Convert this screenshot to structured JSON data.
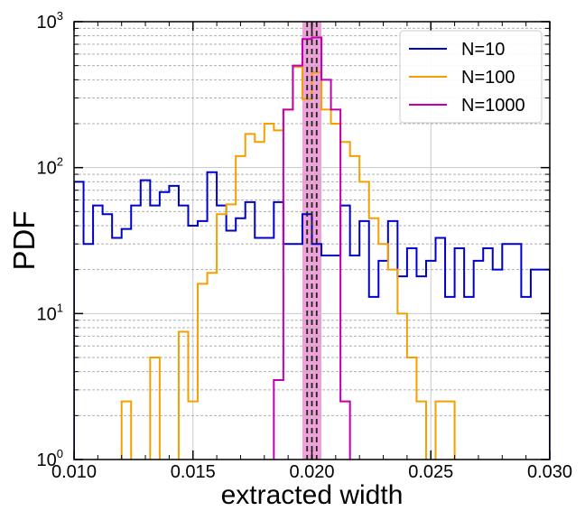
{
  "chart_data": {
    "type": "line",
    "title": "",
    "xlabel": "extracted width",
    "ylabel": "PDF",
    "xlim": [
      0.01,
      0.03
    ],
    "ylim": [
      1,
      1000
    ],
    "yscale": "log",
    "grid": true,
    "legend_position": "top-right",
    "x_ticks": [
      "0.010",
      "0.015",
      "0.020",
      "0.025",
      "0.030"
    ],
    "y_ticks": [
      {
        "base": "10",
        "exp": "0",
        "value": 1
      },
      {
        "base": "10",
        "exp": "1",
        "value": 10
      },
      {
        "base": "10",
        "exp": "2",
        "value": 100
      },
      {
        "base": "10",
        "exp": "3",
        "value": 1000
      }
    ],
    "band": {
      "xmin": 0.0196,
      "xmax": 0.0204,
      "color": "#f0a0d8"
    },
    "reference_lines": [
      0.0198,
      0.02,
      0.0202
    ],
    "series": [
      {
        "name": "N=10",
        "color": "#0000cc",
        "x_min": 0.01,
        "bin_width": 0.0004,
        "values": [
          80,
          30,
          55,
          48,
          33,
          38,
          55,
          82,
          55,
          68,
          75,
          55,
          40,
          43,
          93,
          55,
          37,
          45,
          58,
          33,
          33,
          58,
          30,
          30,
          48,
          30,
          25,
          25,
          55,
          25,
          43,
          13,
          23,
          43,
          18,
          28,
          18,
          23,
          33,
          13,
          28,
          13,
          23,
          28,
          20,
          30,
          30,
          13,
          20,
          20
        ]
      },
      {
        "name": "N=100",
        "color": "#f5a000",
        "x_min": 0.01,
        "bin_width": 0.0004,
        "values": [
          0,
          0,
          0,
          0,
          0,
          2.5,
          0,
          0,
          5,
          0,
          0,
          7.5,
          2.5,
          16,
          19,
          48,
          56,
          120,
          170,
          150,
          200,
          180,
          250,
          490,
          295,
          450,
          250,
          200,
          150,
          120,
          80,
          45,
          30,
          20,
          10,
          5,
          2.5,
          0,
          2.5,
          2.5,
          0,
          0,
          0,
          0,
          0,
          0,
          0,
          0,
          0,
          0
        ]
      },
      {
        "name": "N=1000",
        "color": "#c000b0",
        "x_min": 0.0184,
        "bin_width": 0.0004,
        "values": [
          3.5,
          250,
          500,
          760,
          780,
          400,
          250,
          2.5
        ]
      }
    ]
  }
}
